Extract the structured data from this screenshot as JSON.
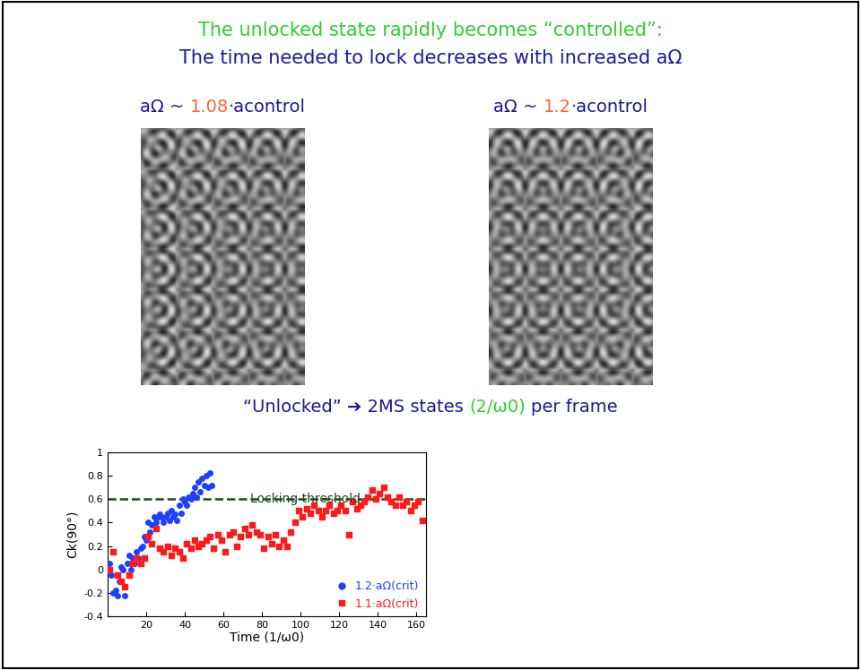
{
  "slide": {
    "title_lines": [
      {
        "text": "The unlocked state rapidly becomes “controlled”:",
        "color": "#33cc33"
      },
      {
        "text": "The time needed to lock decreases with increased aΩ",
        "color": "#1a1a99"
      }
    ],
    "images": [
      {
        "label_prefix": "aΩ ~",
        "factor": 1.08,
        "label_suffix": "·acontrol"
      },
      {
        "label_prefix": "aΩ ~",
        "factor": 1.2,
        "label_suffix": "·acontrol"
      }
    ],
    "image_label_color": "#1a1a99",
    "factor_color": "#ff6633",
    "caption": [
      {
        "text": "“Unlocked” ➔ 2MS states",
        "color": "#1a1a99"
      },
      {
        "text": "(2/ω0)",
        "color": "#33cc33"
      },
      {
        "text": "per frame",
        "color": "#1a1a99"
      }
    ]
  },
  "chart_data": {
    "type": "scatter",
    "x_label": "Time (1/ω0)",
    "y_label": "Ck(90°)",
    "xlim": [
      0,
      165
    ],
    "xticks": [
      20,
      40,
      60,
      80,
      100,
      120,
      140,
      160
    ],
    "ylim": [
      -0.4,
      1
    ],
    "yticks": [
      -0.4,
      -0.2,
      0,
      0.2,
      0.4,
      0.6,
      0.8,
      1
    ],
    "legend": "lower right",
    "threshold": {
      "value": 0.6,
      "label": "Locking threshold",
      "color": "#1a4d1a",
      "line_style": "dashed"
    },
    "series": [
      {
        "name": "1.2·aΩ(crit)",
        "color": "#1f3fff",
        "marker": "circle",
        "x": [
          1,
          2,
          3,
          4,
          5,
          6,
          7,
          8,
          9,
          10,
          11,
          12,
          13,
          14,
          15,
          16,
          17,
          18,
          19,
          20,
          21,
          22,
          23,
          24,
          25,
          26,
          27,
          28,
          29,
          30,
          31,
          32,
          33,
          34,
          35,
          36,
          37,
          38,
          39,
          40,
          41,
          42,
          43,
          44,
          45,
          46,
          47,
          48,
          49,
          50,
          51,
          52,
          53,
          54
        ],
        "values": [
          0.05,
          -0.05,
          -0.2,
          -0.18,
          -0.22,
          -0.1,
          0.02,
          0.0,
          -0.22,
          0.05,
          0.12,
          0.0,
          0.1,
          0.05,
          0.15,
          0.1,
          0.18,
          0.2,
          0.28,
          0.25,
          0.4,
          0.32,
          0.38,
          0.45,
          0.4,
          0.45,
          0.47,
          0.45,
          0.4,
          0.45,
          0.48,
          0.42,
          0.5,
          0.45,
          0.47,
          0.42,
          0.55,
          0.48,
          0.6,
          0.58,
          0.55,
          0.62,
          0.6,
          0.65,
          0.7,
          0.62,
          0.75,
          0.66,
          0.78,
          0.72,
          0.8,
          0.7,
          0.82,
          0.72
        ]
      },
      {
        "name": "1.1·aΩ(crit)",
        "color": "#ff1a1a",
        "marker": "square",
        "x": [
          1,
          3,
          5,
          7,
          9,
          11,
          13,
          15,
          17,
          19,
          21,
          23,
          25,
          27,
          29,
          31,
          33,
          35,
          37,
          39,
          41,
          43,
          45,
          47,
          49,
          51,
          53,
          55,
          57,
          59,
          61,
          63,
          65,
          67,
          69,
          71,
          73,
          75,
          77,
          79,
          81,
          83,
          85,
          87,
          89,
          91,
          93,
          95,
          97,
          99,
          101,
          103,
          105,
          107,
          109,
          111,
          113,
          115,
          117,
          119,
          121,
          123,
          125,
          127,
          129,
          131,
          133,
          135,
          137,
          139,
          141,
          143,
          145,
          147,
          149,
          151,
          153,
          155,
          157,
          159,
          161,
          163
        ],
        "values": [
          0.0,
          0.15,
          -0.05,
          -0.1,
          -0.15,
          -0.05,
          0.05,
          0.1,
          0.05,
          0.1,
          0.28,
          0.22,
          0.35,
          0.18,
          0.15,
          0.2,
          0.12,
          0.18,
          0.15,
          0.1,
          0.22,
          0.18,
          0.25,
          0.2,
          0.22,
          0.25,
          0.28,
          0.18,
          0.3,
          0.25,
          0.15,
          0.3,
          0.32,
          0.2,
          0.28,
          0.35,
          0.3,
          0.38,
          0.32,
          0.3,
          0.18,
          0.28,
          0.22,
          0.3,
          0.2,
          0.25,
          0.2,
          0.32,
          0.4,
          0.5,
          0.45,
          0.52,
          0.48,
          0.55,
          0.5,
          0.45,
          0.5,
          0.55,
          0.48,
          0.5,
          0.55,
          0.5,
          0.3,
          0.58,
          0.52,
          0.55,
          0.58,
          0.62,
          0.68,
          0.6,
          0.65,
          0.7,
          0.62,
          0.58,
          0.55,
          0.62,
          0.55,
          0.58,
          0.5,
          0.55,
          0.58,
          0.42
        ]
      }
    ]
  }
}
